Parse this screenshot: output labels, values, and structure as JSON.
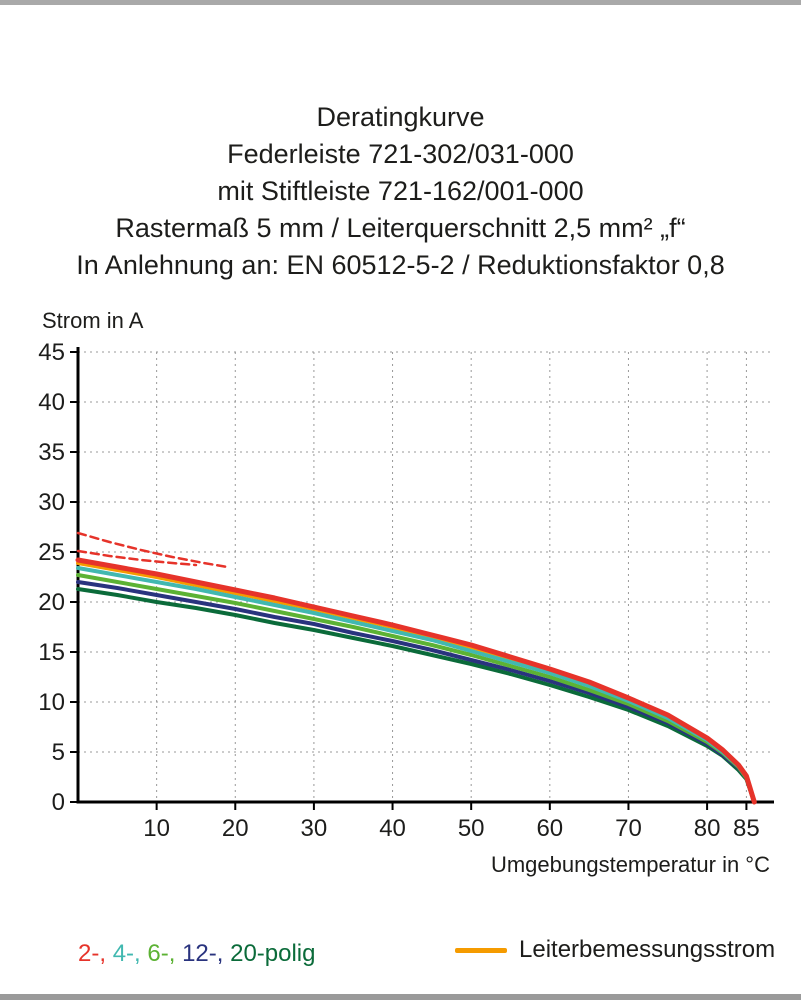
{
  "title_lines": [
    "Deratingkurve",
    "Federleiste 721-302/031-000",
    "mit Stiftleiste 721-162/001-000",
    "Rastermaß 5 mm / Leiterquerschnitt 2,5 mm² „f“",
    "In Anlehnung an: EN 60512-5-2 / Reduktionsfaktor 0,8"
  ],
  "chart_data": {
    "type": "line",
    "title": "Deratingkurve",
    "x_label": "Umgebungstemperatur in °C",
    "y_label": "Strom in A",
    "xlim": [
      0,
      88
    ],
    "ylim": [
      0,
      45
    ],
    "x_ticks": [
      10,
      20,
      30,
      40,
      50,
      60,
      70,
      80,
      85
    ],
    "y_ticks": [
      0,
      5,
      10,
      15,
      20,
      25,
      30,
      35,
      40,
      45
    ],
    "grid": "dashed",
    "x": [
      0,
      5,
      10,
      15,
      20,
      25,
      30,
      35,
      40,
      45,
      50,
      55,
      60,
      65,
      70,
      75,
      80,
      82,
      84,
      85,
      86
    ],
    "series": [
      {
        "name": "Leiterbemessungsstrom",
        "color": "#f59b00",
        "width": 4,
        "values": [
          23.9,
          23.2,
          22.5,
          21.7,
          20.9,
          20.1,
          19.3,
          18.4,
          17.5,
          16.5,
          15.5,
          14.3,
          13.1,
          11.8,
          10.3,
          8.5,
          6.3,
          5.2,
          3.6,
          2.6,
          0
        ]
      },
      {
        "name": "20-polig",
        "color": "#0b6b3a",
        "width": 4,
        "values": [
          21.3,
          20.7,
          20.0,
          19.4,
          18.7,
          17.9,
          17.2,
          16.4,
          15.6,
          14.7,
          13.8,
          12.8,
          11.7,
          10.5,
          9.2,
          7.6,
          5.6,
          4.6,
          3.2,
          2.3,
          0
        ]
      },
      {
        "name": "12-polig",
        "color": "#29337e",
        "width": 4,
        "values": [
          22.0,
          21.4,
          20.7,
          20.0,
          19.3,
          18.5,
          17.8,
          16.9,
          16.1,
          15.2,
          14.2,
          13.2,
          12.1,
          10.9,
          9.5,
          7.9,
          5.8,
          4.7,
          3.4,
          2.4,
          0
        ]
      },
      {
        "name": "6-polig",
        "color": "#5cb234",
        "width": 4,
        "values": [
          22.7,
          22.0,
          21.3,
          20.6,
          19.9,
          19.1,
          18.3,
          17.5,
          16.6,
          15.7,
          14.7,
          13.6,
          12.5,
          11.2,
          9.8,
          8.1,
          6.0,
          4.9,
          3.5,
          2.4,
          0
        ]
      },
      {
        "name": "4-polig",
        "color": "#41b8b0",
        "width": 4,
        "values": [
          23.4,
          22.7,
          22.0,
          21.3,
          20.5,
          19.7,
          18.9,
          18.0,
          17.1,
          16.2,
          15.1,
          14.0,
          12.9,
          11.6,
          10.1,
          8.4,
          6.2,
          5.0,
          3.6,
          2.5,
          0
        ]
      },
      {
        "name": "2-polig",
        "color": "#e6332a",
        "width": 5,
        "values": [
          24.2,
          23.5,
          22.8,
          22.0,
          21.2,
          20.4,
          19.5,
          18.6,
          17.7,
          16.7,
          15.7,
          14.5,
          13.3,
          12.0,
          10.4,
          8.7,
          6.4,
          5.2,
          3.7,
          2.6,
          0
        ]
      },
      {
        "name": "2-polig-grenzlinie-1",
        "color": "#e6332a",
        "width": 2.5,
        "dash": "8 5",
        "points": [
          [
            0,
            26.9
          ],
          [
            4,
            26.0
          ],
          [
            8,
            25.2
          ],
          [
            12,
            24.5
          ],
          [
            16,
            23.9
          ],
          [
            19,
            23.5
          ]
        ]
      },
      {
        "name": "2-polig-grenzlinie-2",
        "color": "#e6332a",
        "width": 2.5,
        "dash": "8 5",
        "points": [
          [
            0,
            25.1
          ],
          [
            4,
            24.6
          ],
          [
            8,
            24.2
          ],
          [
            12,
            23.9
          ],
          [
            15,
            23.7
          ]
        ]
      }
    ]
  },
  "legend": {
    "poles": [
      {
        "label": "2-",
        "color": "#e6332a"
      },
      {
        "label": "4-",
        "color": "#41b8b0"
      },
      {
        "label": "6-",
        "color": "#5cb234"
      },
      {
        "label": "12-",
        "color": "#29337e"
      },
      {
        "label": "20-",
        "color": "#0b6b3a"
      }
    ],
    "polig_suffix": "polig",
    "rated_label": "Leiterbemessungsstrom",
    "rated_color": "#f59b00"
  }
}
